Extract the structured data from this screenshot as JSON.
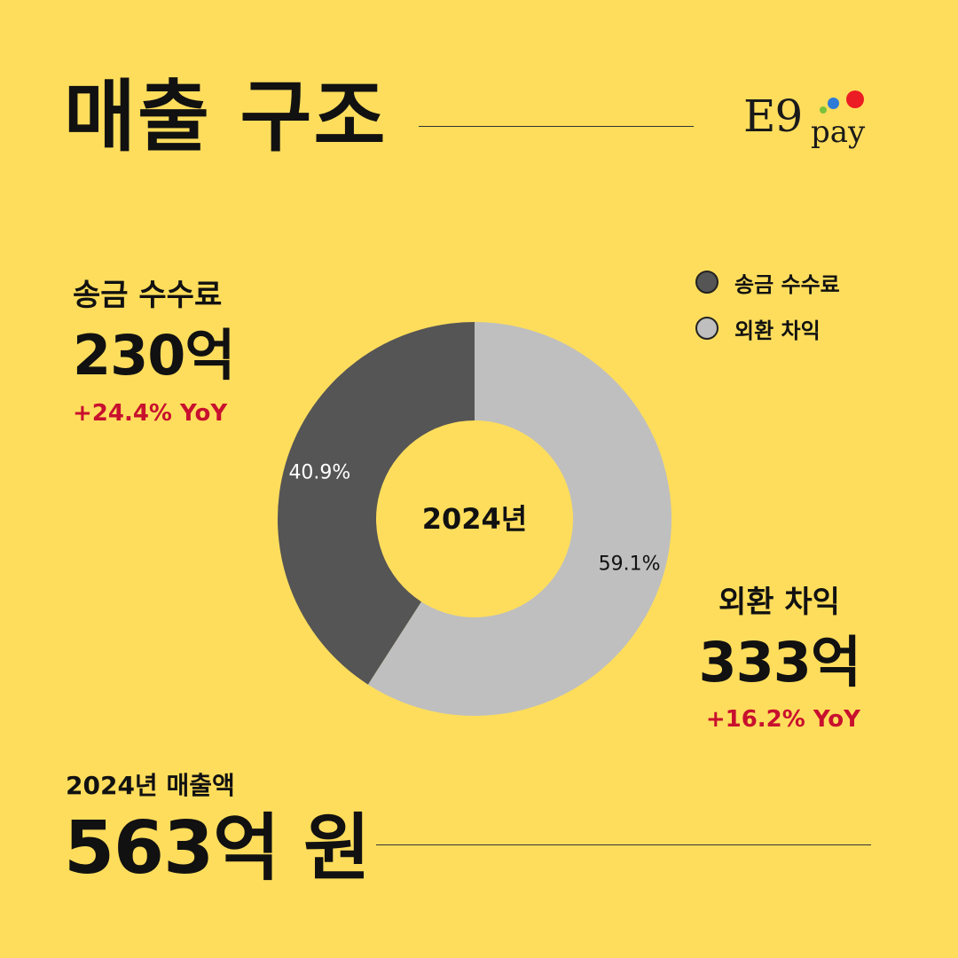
{
  "header": {
    "title": "매출 구조"
  },
  "logo": {
    "text_main": "E9",
    "text_sub": "pay",
    "colors": [
      "#7CC13B",
      "#2F7BD8",
      "#EC1C24"
    ]
  },
  "legend": [
    {
      "label": "송금 수수료",
      "color": "#555555"
    },
    {
      "label": "외환 차익",
      "color": "#BFBFBF"
    }
  ],
  "callouts": {
    "remittance": {
      "label": "송금 수수료",
      "amount": "230억",
      "yoy": "+24.4% YoY"
    },
    "fx": {
      "label": "외환 차익",
      "amount": "333억",
      "yoy": "+16.2% YoY"
    }
  },
  "total": {
    "label": "2024년 매출액",
    "amount": "563억 원"
  },
  "colors": {
    "background": "#FEDD5C",
    "yoy": "#C8102E"
  },
  "chart_data": {
    "type": "pie",
    "donut": true,
    "center_label": "2024년",
    "slices": [
      {
        "label": "외환 차익",
        "value": 59.1,
        "display": "59.1%",
        "color": "#BFBFBF"
      },
      {
        "label": "송금 수수료",
        "value": 40.9,
        "display": "40.9%",
        "color": "#555555"
      }
    ]
  }
}
